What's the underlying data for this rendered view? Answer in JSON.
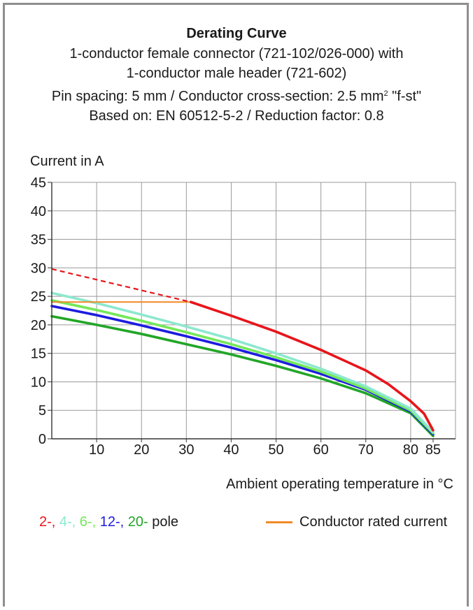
{
  "page": {
    "title": "Derating Curve",
    "subtitle_lines": [
      "1-conductor female connector (721-102/026-000) with",
      "1-conductor male header (721-602)"
    ],
    "spec_line_prefix": "Pin spacing: 5 mm / Conductor cross-section: 2.5 mm",
    "spec_line_sup": "2",
    "spec_line_suffix": " \"f-st\"",
    "basis_line": "Based on: EN 60512-5-2 / Reduction factor: 0.8"
  },
  "legend": {
    "pole_items": [
      {
        "text": "2-,",
        "color": "#e8151b"
      },
      {
        "text": " 4-,",
        "color": "#8de8cf"
      },
      {
        "text": " 6-,",
        "color": "#73e85a"
      },
      {
        "text": " 12-,",
        "color": "#1c1ce0"
      },
      {
        "text": " 20-",
        "color": "#22a627"
      },
      {
        "text": " pole",
        "color": "#1a1a1a"
      }
    ],
    "rated_label": "Conductor rated current",
    "rated_color": "#f08a25"
  },
  "chart_data": {
    "type": "line",
    "ylabel": "Current in A",
    "xlabel": "Ambient operating temperature in °C",
    "xlim": [
      0,
      90
    ],
    "ylim": [
      0,
      45
    ],
    "x_ticks": [
      10,
      20,
      30,
      40,
      50,
      60,
      70,
      80,
      85
    ],
    "y_ticks": [
      0,
      5,
      10,
      15,
      20,
      25,
      30,
      35,
      40,
      45
    ],
    "grid": true,
    "series": [
      {
        "name": "2-",
        "color": "#e8151b",
        "x": [
          0,
          31,
          40,
          50,
          60,
          70,
          75,
          80,
          83,
          85
        ],
        "y": [
          29.8,
          24,
          21.6,
          18.8,
          15.6,
          12,
          9.6,
          6.6,
          4.4,
          1.5
        ],
        "dashed_until_x": 31
      },
      {
        "name": "4-",
        "color": "#8de8cf",
        "x": [
          0,
          10,
          20,
          30,
          40,
          50,
          60,
          70,
          80,
          85
        ],
        "y": [
          25.6,
          23.8,
          21.8,
          19.7,
          17.5,
          15,
          12.3,
          9.2,
          5.3,
          1.2
        ]
      },
      {
        "name": "6-",
        "color": "#73e85a",
        "x": [
          0,
          10,
          20,
          30,
          40,
          50,
          60,
          70,
          80,
          85
        ],
        "y": [
          24.3,
          22.6,
          20.7,
          18.7,
          16.6,
          14.3,
          11.8,
          8.8,
          5,
          1
        ]
      },
      {
        "name": "12-",
        "color": "#1c1ce0",
        "x": [
          0,
          10,
          20,
          30,
          40,
          50,
          60,
          70,
          80,
          85
        ],
        "y": [
          23.3,
          21.7,
          19.9,
          18,
          16,
          13.8,
          11.4,
          8.6,
          4.8,
          0.8
        ]
      },
      {
        "name": "20-",
        "color": "#22a627",
        "x": [
          0,
          10,
          20,
          30,
          40,
          50,
          60,
          70,
          80,
          85
        ],
        "y": [
          21.5,
          20,
          18.4,
          16.6,
          14.8,
          12.8,
          10.6,
          8,
          4.5,
          0.5
        ]
      },
      {
        "name": "Conductor rated current",
        "color": "#f08a25",
        "x": [
          0,
          31
        ],
        "y": [
          24,
          24
        ]
      }
    ]
  }
}
